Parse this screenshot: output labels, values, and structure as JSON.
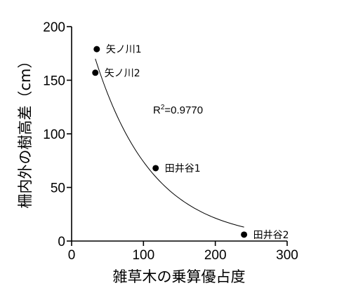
{
  "chart_data": {
    "type": "scatter",
    "xlabel": "雑草木の乗算優占度",
    "ylabel": "柵内外の樹高差（cm）",
    "xlim": [
      0,
      300
    ],
    "ylim": [
      0,
      200
    ],
    "x_ticks": [
      "0",
      "100",
      "200",
      "300"
    ],
    "y_ticks": [
      "0",
      "50",
      "100",
      "150",
      "200"
    ],
    "points": [
      {
        "label": "矢ノ川1",
        "x": 35,
        "y": 179
      },
      {
        "label": "矢ノ川2",
        "x": 33,
        "y": 157
      },
      {
        "label": "田井谷1",
        "x": 117,
        "y": 68
      },
      {
        "label": "田井谷2",
        "x": 240,
        "y": 6
      }
    ],
    "trendline": {
      "type": "exponential",
      "x_range": [
        33,
        240
      ],
      "y_values": [
        170,
        13
      ]
    },
    "annotation": {
      "r_symbol": "R",
      "superscript": "2",
      "value_text": "=0.9770"
    }
  }
}
